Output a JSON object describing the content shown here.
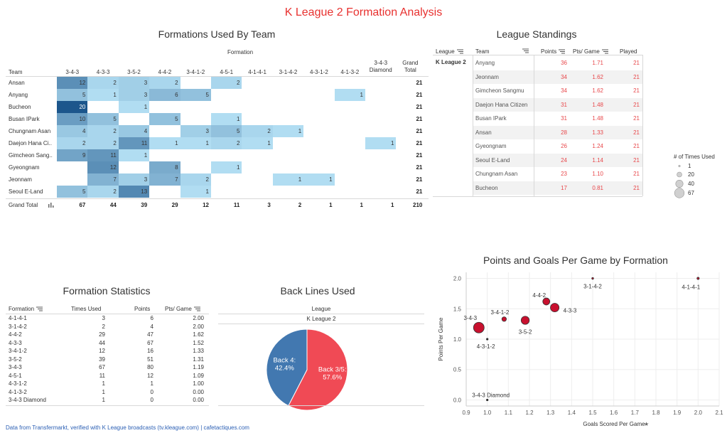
{
  "title": "K League 2 Formation Analysis",
  "footer": "Data from Transfermarkt, verified with K League broadcasts (tv.kleague.com) | cafetactiques.com",
  "heatmap": {
    "title": "Formations Used By Team",
    "formation_label": "Formation",
    "team_label": "Team",
    "grand_total_col": "Grand Total",
    "grand_total_row": "Grand Total",
    "formations": [
      "3-4-3",
      "4-3-3",
      "3-5-2",
      "4-4-2",
      "3-4-1-2",
      "4-5-1",
      "4-1-4-1",
      "3-1-4-2",
      "4-3-1-2",
      "4-1-3-2",
      "3-4-3 Diamond"
    ],
    "teams": [
      "Ansan",
      "Anyang",
      "Bucheon",
      "Busan IPark",
      "Chungnam Asan",
      "Daejon Hana Ci..",
      "Gimcheon Sang..",
      "Gyeongnam",
      "Jeonnam",
      "Seoul E-Land"
    ],
    "values": [
      [
        12,
        2,
        3,
        2,
        null,
        2,
        null,
        null,
        null,
        null,
        null
      ],
      [
        5,
        1,
        3,
        6,
        5,
        null,
        null,
        null,
        null,
        1,
        null
      ],
      [
        20,
        null,
        1,
        null,
        null,
        null,
        null,
        null,
        null,
        null,
        null
      ],
      [
        10,
        5,
        null,
        5,
        null,
        1,
        null,
        null,
        null,
        null,
        null
      ],
      [
        4,
        2,
        4,
        null,
        3,
        5,
        2,
        1,
        null,
        null,
        null
      ],
      [
        2,
        2,
        11,
        1,
        1,
        2,
        1,
        null,
        null,
        null,
        1
      ],
      [
        9,
        11,
        1,
        null,
        null,
        null,
        null,
        null,
        null,
        null,
        null
      ],
      [
        null,
        12,
        null,
        8,
        null,
        1,
        null,
        null,
        null,
        null,
        null
      ],
      [
        null,
        7,
        3,
        7,
        2,
        null,
        null,
        1,
        1,
        null,
        null
      ],
      [
        5,
        2,
        13,
        null,
        1,
        null,
        null,
        null,
        null,
        null,
        null
      ]
    ],
    "row_totals": [
      "21",
      "21",
      "21",
      "21",
      "21",
      "21",
      "21",
      "21",
      "21",
      "21"
    ],
    "col_totals": [
      "67",
      "44",
      "39",
      "29",
      "12",
      "11",
      "3",
      "2",
      "1",
      "1",
      "1"
    ],
    "total": "210"
  },
  "standings": {
    "title": "League Standings",
    "headers": {
      "league": "League",
      "team": "Team",
      "points": "Points",
      "ppg": "Pts/ Game",
      "played": "Played"
    },
    "league": "K League 2",
    "rows": [
      {
        "team": "Anyang",
        "points": "36",
        "ppg": "1.71",
        "played": "21"
      },
      {
        "team": "Jeonnam",
        "points": "34",
        "ppg": "1.62",
        "played": "21"
      },
      {
        "team": "Gimcheon Sangmu",
        "points": "34",
        "ppg": "1.62",
        "played": "21"
      },
      {
        "team": "Daejon Hana Citizen",
        "points": "31",
        "ppg": "1.48",
        "played": "21"
      },
      {
        "team": "Busan IPark",
        "points": "31",
        "ppg": "1.48",
        "played": "21"
      },
      {
        "team": "Ansan",
        "points": "28",
        "ppg": "1.33",
        "played": "21"
      },
      {
        "team": "Gyeongnam",
        "points": "26",
        "ppg": "1.24",
        "played": "21"
      },
      {
        "team": "Seoul E-Land",
        "points": "24",
        "ppg": "1.14",
        "played": "21"
      },
      {
        "team": "Chungnam Asan",
        "points": "23",
        "ppg": "1.10",
        "played": "21"
      },
      {
        "team": "Bucheon",
        "points": "17",
        "ppg": "0.81",
        "played": "21"
      }
    ]
  },
  "size_legend": {
    "title": "# of Times Used",
    "items": [
      "1",
      "20",
      "40",
      "67"
    ]
  },
  "formation_stats": {
    "title": "Formation Statistics",
    "headers": {
      "formation": "Formation",
      "times": "Times Used",
      "points": "Points",
      "ppg": "Pts/ Game"
    },
    "rows": [
      {
        "formation": "4-1-4-1",
        "times": "3",
        "points": "6",
        "ppg": "2.00"
      },
      {
        "formation": "3-1-4-2",
        "times": "2",
        "points": "4",
        "ppg": "2.00"
      },
      {
        "formation": "4-4-2",
        "times": "29",
        "points": "47",
        "ppg": "1.62"
      },
      {
        "formation": "4-3-3",
        "times": "44",
        "points": "67",
        "ppg": "1.52"
      },
      {
        "formation": "3-4-1-2",
        "times": "12",
        "points": "16",
        "ppg": "1.33"
      },
      {
        "formation": "3-5-2",
        "times": "39",
        "points": "51",
        "ppg": "1.31"
      },
      {
        "formation": "3-4-3",
        "times": "67",
        "points": "80",
        "ppg": "1.19"
      },
      {
        "formation": "4-5-1",
        "times": "11",
        "points": "12",
        "ppg": "1.09"
      },
      {
        "formation": "4-3-1-2",
        "times": "1",
        "points": "1",
        "ppg": "1.00"
      },
      {
        "formation": "4-1-3-2",
        "times": "1",
        "points": "0",
        "ppg": "0.00"
      },
      {
        "formation": "3-4-3 Diamond",
        "times": "1",
        "points": "0",
        "ppg": "0.00"
      }
    ]
  },
  "chart_data": [
    {
      "type": "pie",
      "title": "Back Lines Used",
      "header": "League",
      "subheader": "K League 2",
      "slices": [
        {
          "label": "Back 4:",
          "pct": "42.4%",
          "value": 42.4,
          "color": "#4278b0"
        },
        {
          "label": "Back 3/5:",
          "pct": "57.6%",
          "value": 57.6,
          "color": "#f04a55"
        }
      ]
    },
    {
      "type": "scatter",
      "title": "Points and Goals Per Game by Formation",
      "xlabel": "Goals Scored Per Game",
      "ylabel": "Points Per Game",
      "xlim": [
        0.9,
        2.1
      ],
      "ylim": [
        -0.1,
        2.1
      ],
      "xticks": [
        "0.9",
        "1.0",
        "1.1",
        "1.2",
        "1.3",
        "1.4",
        "1.5",
        "1.6",
        "1.7",
        "1.8",
        "1.9",
        "2.0",
        "2.1"
      ],
      "yticks": [
        "0.0",
        "0.5",
        "1.0",
        "1.5",
        "2.0"
      ],
      "point_color": "#c8102e",
      "points": [
        {
          "label": "3-4-3",
          "x": 0.96,
          "y": 1.19,
          "n": 67
        },
        {
          "label": "4-3-3",
          "x": 1.32,
          "y": 1.52,
          "n": 44
        },
        {
          "label": "3-5-2",
          "x": 1.18,
          "y": 1.31,
          "n": 39
        },
        {
          "label": "4-4-2",
          "x": 1.28,
          "y": 1.62,
          "n": 29
        },
        {
          "label": "3-4-1-2",
          "x": 1.08,
          "y": 1.33,
          "n": 12
        },
        {
          "label": "3-1-4-2",
          "x": 1.5,
          "y": 2.0,
          "n": 2
        },
        {
          "label": "4-1-4-1",
          "x": 2.0,
          "y": 2.0,
          "n": 3
        },
        {
          "label": "4-3-1-2",
          "x": 1.0,
          "y": 1.0,
          "n": 1
        },
        {
          "label": "3-4-3 Diamond",
          "x": 1.0,
          "y": 0.0,
          "n": 1
        }
      ]
    }
  ]
}
